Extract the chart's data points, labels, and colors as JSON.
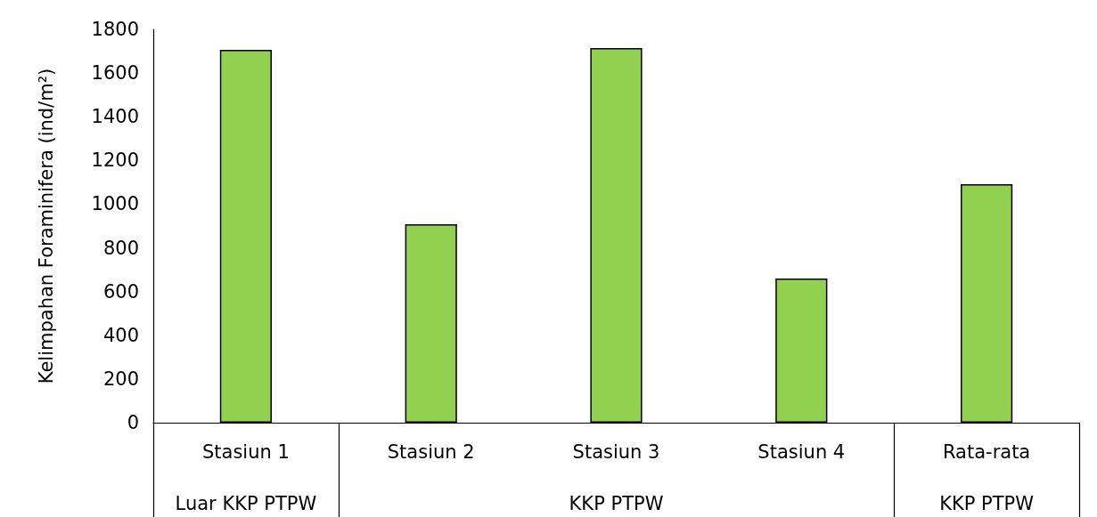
{
  "chart_data": {
    "type": "bar",
    "ylabel": "Kelimpahan Foraminifera (ind/m²)",
    "categories": [
      "Stasiun 1",
      "Stasiun 2",
      "Stasiun 3",
      "Stasiun 4",
      "Rata-rata"
    ],
    "values": [
      1706,
      908,
      1714,
      660,
      1091
    ],
    "color": "#92d050",
    "ylim": [
      0,
      1800
    ],
    "yticks": [
      0,
      200,
      400,
      600,
      800,
      1000,
      1200,
      1400,
      1600,
      1800
    ],
    "grid": false,
    "annotations": [
      "Luar KKP PTPW",
      "KKP PTPW",
      "KKP PTPW"
    ]
  }
}
